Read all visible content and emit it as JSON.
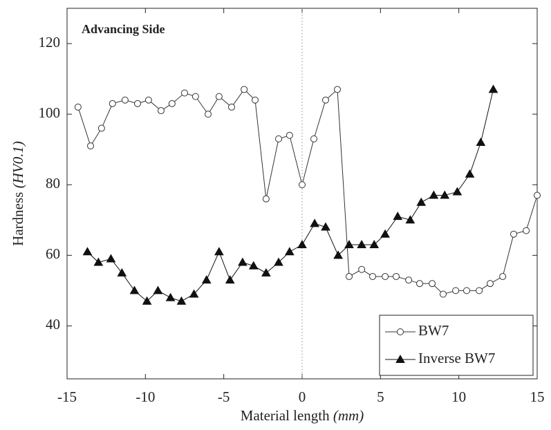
{
  "chart_data": {
    "type": "line",
    "annotation": "Advancing Side",
    "xlabel": "Material length",
    "xlabel_unit": "(mm)",
    "ylabel": "Hardness",
    "ylabel_unit": "(HV0.1)",
    "xlim": [
      -15,
      15
    ],
    "ylim": [
      25,
      130
    ],
    "xticks": [
      -15,
      -10,
      -5,
      0,
      5,
      10,
      15
    ],
    "yticks": [
      40,
      60,
      80,
      100,
      120
    ],
    "reference_line_x": 0,
    "legend": "lower right",
    "series": [
      {
        "name": "BW7",
        "color": "#333333",
        "marker": "circle",
        "x": [
          -14.3,
          -13.5,
          -12.8,
          -12.1,
          -11.3,
          -10.5,
          -9.8,
          -9.0,
          -8.3,
          -7.5,
          -6.8,
          -6.0,
          -5.3,
          -4.5,
          -3.7,
          -3.0,
          -2.3,
          -1.5,
          -0.8,
          0,
          0.75,
          1.5,
          2.25,
          3.0,
          3.8,
          4.5,
          5.3,
          6.0,
          6.8,
          7.5,
          8.3,
          9.0,
          9.8,
          10.5,
          11.3,
          12.0,
          12.8,
          13.5,
          14.3,
          15.0
        ],
        "values": [
          102,
          91,
          96,
          103,
          104,
          103,
          104,
          101,
          103,
          106,
          105,
          100,
          105,
          102,
          107,
          104,
          76,
          93,
          94,
          80,
          93,
          104,
          107,
          54,
          56,
          54,
          54,
          54,
          53,
          52,
          52,
          49,
          50,
          50,
          50,
          52,
          54,
          66,
          67,
          77
        ]
      },
      {
        "name": "Inverse BW7",
        "color": "#111111",
        "marker": "triangle",
        "x": [
          -13.7,
          -13.0,
          -12.2,
          -11.5,
          -10.7,
          -9.9,
          -9.2,
          -8.4,
          -7.7,
          -6.9,
          -6.1,
          -5.3,
          -4.6,
          -3.8,
          -3.1,
          -2.3,
          -1.5,
          -0.8,
          0,
          0.8,
          1.5,
          2.3,
          3.0,
          3.8,
          4.6,
          5.3,
          6.1,
          6.9,
          7.6,
          8.4,
          9.1,
          9.9,
          10.7,
          11.4,
          12.2
        ],
        "values": [
          61,
          58,
          59,
          55,
          50,
          47,
          50,
          48,
          47,
          49,
          53,
          61,
          53,
          58,
          57,
          55,
          58,
          61,
          63,
          69,
          68,
          60,
          63,
          63,
          63,
          66,
          71,
          70,
          75,
          77,
          77,
          78,
          83,
          92,
          107
        ]
      }
    ]
  }
}
